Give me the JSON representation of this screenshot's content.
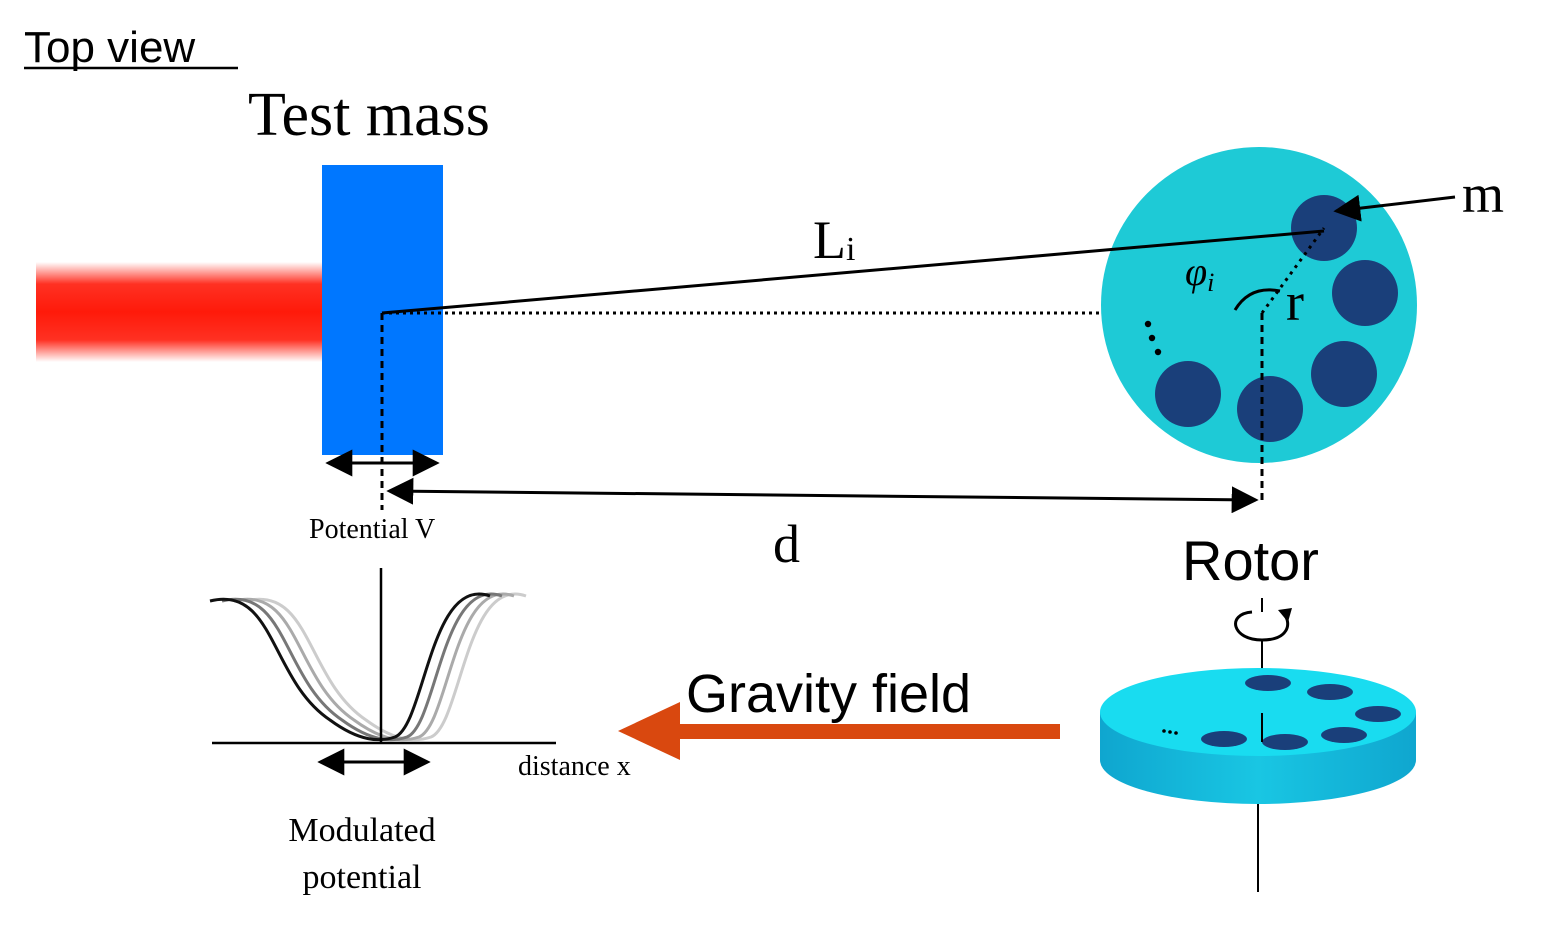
{
  "labels": {
    "top_view": "Top view",
    "test_mass": "Test mass",
    "L_main": "L",
    "L_sub": "i",
    "m": "m",
    "phi_main": "φ",
    "phi_sub": "i",
    "r": "r",
    "d": "d",
    "potential_v": "Potential V",
    "rotor": "Rotor",
    "gravity_field": "Gravity field",
    "distance_x": "distance x",
    "modulated_line1": "Modulated",
    "modulated_line2": "potential",
    "dots_top": ":",
    "dots_side": "..."
  },
  "colors": {
    "laser": "#ff1a0a",
    "test_mass": "#0077ff",
    "rotor_disk": "#1ecad6",
    "rotor_hole": "#1a3f7a",
    "gravity_arrow": "#d9480f",
    "disk_top": "#19dcf0",
    "disk_side": "#14b4d6",
    "curve_black": "#111111",
    "curve_dark_gray": "#777777",
    "curve_mid_gray": "#aaaaaa",
    "curve_light_gray": "#cccccc"
  },
  "icons": {
    "rotation": "rotation-arrow-icon"
  }
}
